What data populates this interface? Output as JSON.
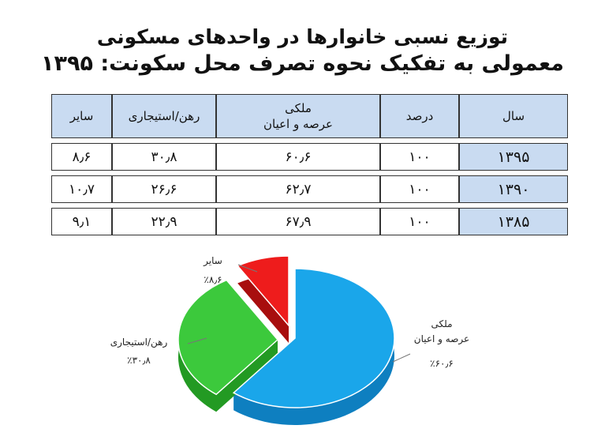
{
  "title": {
    "line1": "توزیع نسبی خانوارها در واحدهای مسکونی",
    "line2": "معمولی به تفکیک نحوه تصرف محل سکونت: ۱۳۹۵"
  },
  "table": {
    "headers": {
      "year": "سال",
      "percent": "درصد",
      "owner_line1": "ملکی",
      "owner_line2": "عرصه و اعیان",
      "rent": "رهن/استیجاری",
      "other": "سایر"
    },
    "rows": [
      {
        "year": "۱۳۹۵",
        "percent": "۱۰۰",
        "owner": "۶۰٫۶",
        "rent": "۳۰٫۸",
        "other": "۸٫۶"
      },
      {
        "year": "۱۳۹۰",
        "percent": "۱۰۰",
        "owner": "۶۲٫۷",
        "rent": "۲۶٫۶",
        "other": "۱۰٫۷"
      },
      {
        "year": "۱۳۸۵",
        "percent": "۱۰۰",
        "owner": "۶۷٫۹",
        "rent": "۲۲٫۹",
        "other": "۹٫۱"
      }
    ]
  },
  "chart_data": {
    "type": "pie",
    "year": "۱۳۹۵",
    "slices": [
      {
        "name_line1": "ملکی",
        "name_line2": "عرصه و اعیان",
        "value": 60.6,
        "label": "٪۶۰٫۶",
        "color": "#1aa6ea",
        "side": "#0e7fc0"
      },
      {
        "name_line1": "رهن/استیجاری",
        "name_line2": "",
        "value": 30.8,
        "label": "٪۳۰٫۸",
        "color": "#3cc93c",
        "side": "#239a23"
      },
      {
        "name_line1": "سایر",
        "name_line2": "",
        "value": 8.6,
        "label": "٪۸٫۶",
        "color": "#ee1c1c",
        "side": "#a80e0e"
      }
    ]
  }
}
